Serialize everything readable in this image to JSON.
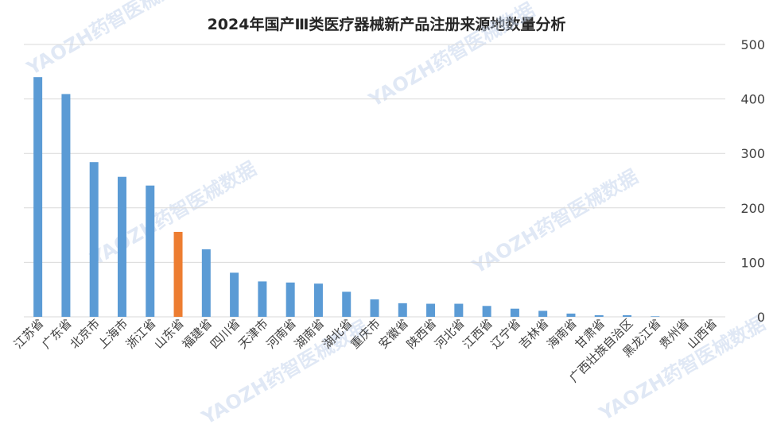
{
  "chart_data": {
    "type": "bar",
    "title": "2024年国产Ⅲ类医疗器械新产品注册来源地数量分析",
    "xlabel": "",
    "ylabel": "",
    "ylim": [
      0,
      500
    ],
    "yticks": [
      0,
      100,
      200,
      300,
      400,
      500
    ],
    "y_axis_side": "right",
    "grid": true,
    "legend": "none",
    "categories": [
      "江苏省",
      "广东省",
      "北京市",
      "上海市",
      "浙江省",
      "山东省",
      "福建省",
      "四川省",
      "天津市",
      "河南省",
      "湖南省",
      "湖北省",
      "重庆市",
      "安徽省",
      "陕西省",
      "河北省",
      "江西省",
      "辽宁省",
      "吉林省",
      "海南省",
      "甘肃省",
      "广西壮族自治区",
      "黑龙江省",
      "贵州省",
      "山西省"
    ],
    "values": [
      440,
      409,
      284,
      257,
      241,
      156,
      124,
      81,
      65,
      63,
      61,
      46,
      32,
      25,
      24,
      24,
      20,
      15,
      11,
      6,
      3,
      3,
      1,
      0,
      0
    ],
    "highlight_index": 5,
    "colors": {
      "bar": "#5b9bd5",
      "highlight": "#ed7d31",
      "grid": "#d9d9d9",
      "text": "#404040"
    }
  },
  "watermark": {
    "text": "YAOZH药智医械数据"
  }
}
